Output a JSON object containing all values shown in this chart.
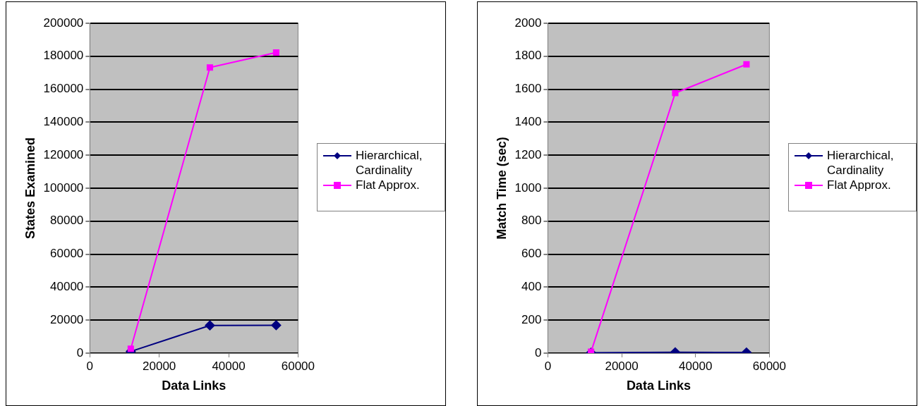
{
  "chart_data": [
    {
      "type": "line",
      "xlabel": "Data Links",
      "ylabel": "States Examined",
      "xlim": [
        0,
        60000
      ],
      "xticks": [
        0,
        20000,
        40000,
        60000
      ],
      "ylim": [
        0,
        200000
      ],
      "yticks": [
        0,
        20000,
        40000,
        60000,
        80000,
        100000,
        120000,
        140000,
        160000,
        180000,
        200000
      ],
      "grid": "y",
      "legend": "right",
      "series": [
        {
          "name": "Hierarchical, Cardinality",
          "color": "#000080",
          "marker": "diamond",
          "x": [
            11800,
            34600,
            53700
          ],
          "values": [
            1000,
            16800,
            16900
          ]
        },
        {
          "name": "Flat Approx.",
          "color": "#ff00ff",
          "marker": "square",
          "x": [
            11800,
            34600,
            53700
          ],
          "values": [
            2700,
            173200,
            182300
          ]
        }
      ]
    },
    {
      "type": "line",
      "xlabel": "Data Links",
      "ylabel": "Match Time (sec)",
      "xlim": [
        0,
        60000
      ],
      "xticks": [
        0,
        20000,
        40000,
        60000
      ],
      "ylim": [
        0,
        2000
      ],
      "yticks": [
        0,
        200,
        400,
        600,
        800,
        1000,
        1200,
        1400,
        1600,
        1800,
        2000
      ],
      "grid": "y",
      "legend": "right",
      "series": [
        {
          "name": "Hierarchical, Cardinality",
          "color": "#000080",
          "marker": "diamond",
          "x": [
            11700,
            34500,
            53800
          ],
          "values": [
            2,
            5,
            4
          ]
        },
        {
          "name": "Flat Approx.",
          "color": "#ff00ff",
          "marker": "square",
          "x": [
            11700,
            34500,
            53800
          ],
          "values": [
            8,
            1577,
            1751
          ]
        }
      ]
    }
  ]
}
